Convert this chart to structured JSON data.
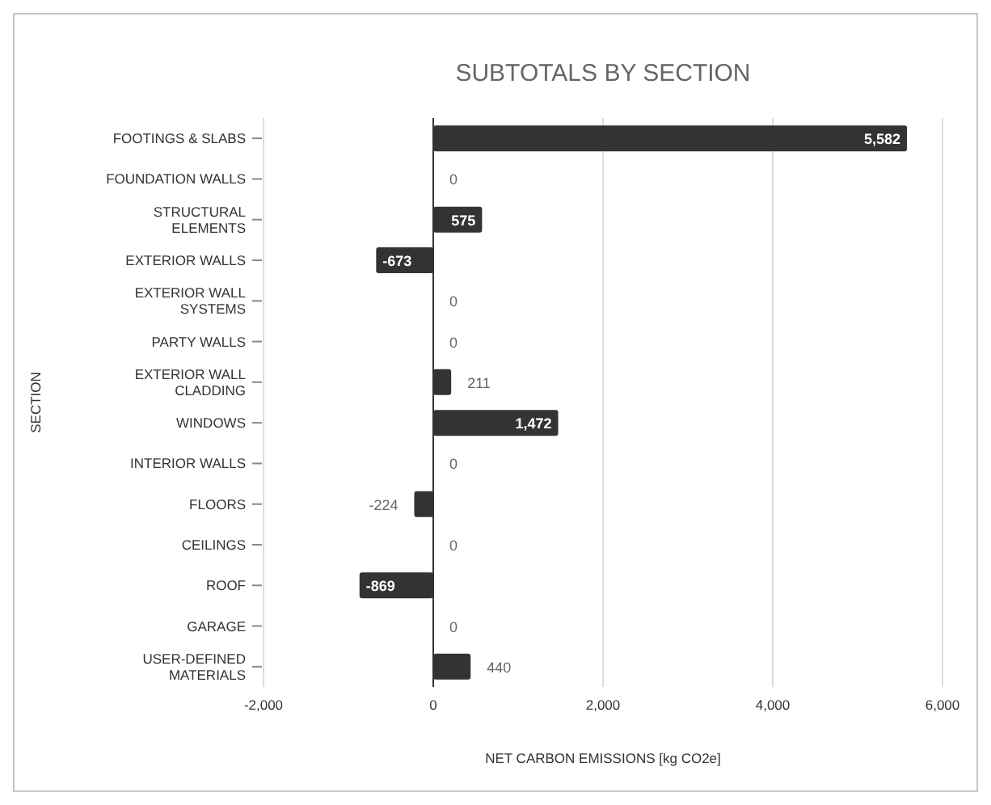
{
  "chart_data": {
    "type": "bar",
    "orientation": "horizontal",
    "title": "SUBTOTALS BY SECTION",
    "xlabel": "NET CARBON EMISSIONS [kg CO2e]",
    "ylabel": "SECTION",
    "categories": [
      "FOOTINGS & SLABS",
      "FOUNDATION WALLS",
      "STRUCTURAL ELEMENTS",
      "EXTERIOR WALLS",
      "EXTERIOR WALL SYSTEMS",
      "PARTY WALLS",
      "EXTERIOR WALL CLADDING",
      "WINDOWS",
      "INTERIOR WALLS",
      "FLOORS",
      "CEILINGS",
      "ROOF",
      "GARAGE",
      "USER-DEFINED MATERIALS"
    ],
    "values": [
      5582,
      0,
      575,
      -673,
      0,
      0,
      211,
      1472,
      0,
      -224,
      0,
      -869,
      0,
      440
    ],
    "value_labels": [
      "5,582",
      "0",
      "575",
      "-673",
      "0",
      "0",
      "211",
      "1,472",
      "0",
      "-224",
      "0",
      "-869",
      "0",
      "440"
    ],
    "color": "#333333",
    "xlim": [
      -2000,
      6000
    ],
    "xticks": [
      {
        "value": -2000,
        "label": "-2,000"
      },
      0,
      {
        "value": 2000,
        "label": "2,000"
      },
      {
        "value": 4000,
        "label": "4,000"
      },
      {
        "value": 6000,
        "label": "6,000"
      }
    ],
    "grid": "x"
  }
}
